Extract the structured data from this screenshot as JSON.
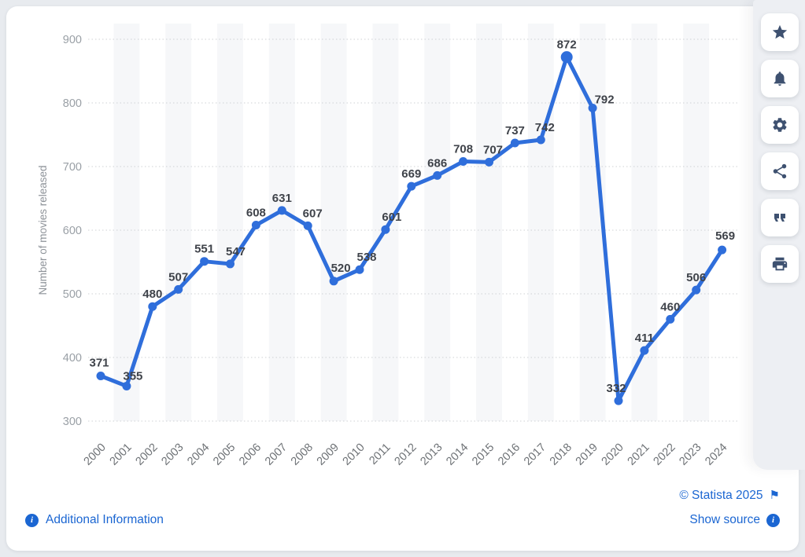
{
  "chart_data": {
    "type": "line",
    "title": "",
    "xlabel": "",
    "ylabel": "Number of movies released",
    "categories": [
      "2000",
      "2001",
      "2002",
      "2003",
      "2004",
      "2005",
      "2006",
      "2007",
      "2008",
      "2009",
      "2010",
      "2011",
      "2012",
      "2013",
      "2014",
      "2015",
      "2016",
      "2017",
      "2018",
      "2019",
      "2020",
      "2021",
      "2022",
      "2023",
      "2024"
    ],
    "values": [
      371,
      355,
      480,
      507,
      551,
      547,
      608,
      631,
      607,
      520,
      538,
      601,
      669,
      686,
      708,
      707,
      737,
      742,
      872,
      792,
      332,
      411,
      460,
      506,
      569
    ],
    "ylim": [
      300,
      900
    ],
    "yticks": [
      300,
      400,
      500,
      600,
      700,
      800,
      900
    ],
    "grid": "dotted-horizontal",
    "legend": "none",
    "line_color": "#2f6edb",
    "marker_color": "#2f6edb",
    "data_label_color": "#3f434a",
    "tick_label_color": "#9aa0a6",
    "x_tick_label_color": "#6e7276",
    "axis_title_color": "#8e9399",
    "stripe_color": "#f6f7f9"
  },
  "footer": {
    "additional_info_label": "Additional Information",
    "copyright_label": "© Statista 2025",
    "show_source_label": "Show source",
    "info_glyph": "i",
    "flag_glyph": "⚑"
  },
  "toolbar": {
    "buttons": [
      {
        "id": "favorite",
        "icon": "star-icon"
      },
      {
        "id": "alerts",
        "icon": "bell-icon"
      },
      {
        "id": "settings",
        "icon": "gear-icon"
      },
      {
        "id": "share",
        "icon": "share-icon"
      },
      {
        "id": "cite",
        "icon": "quote-icon"
      },
      {
        "id": "print",
        "icon": "printer-icon"
      }
    ],
    "icon_color": "#3e5170"
  },
  "colors": {
    "link_blue": "#1b66d2",
    "line_blue": "#2f6edb",
    "icon_navy": "#3e5170",
    "card_bg": "#ffffff",
    "page_bg": "#e8ebef",
    "toolbar_bg": "#edeff3"
  }
}
